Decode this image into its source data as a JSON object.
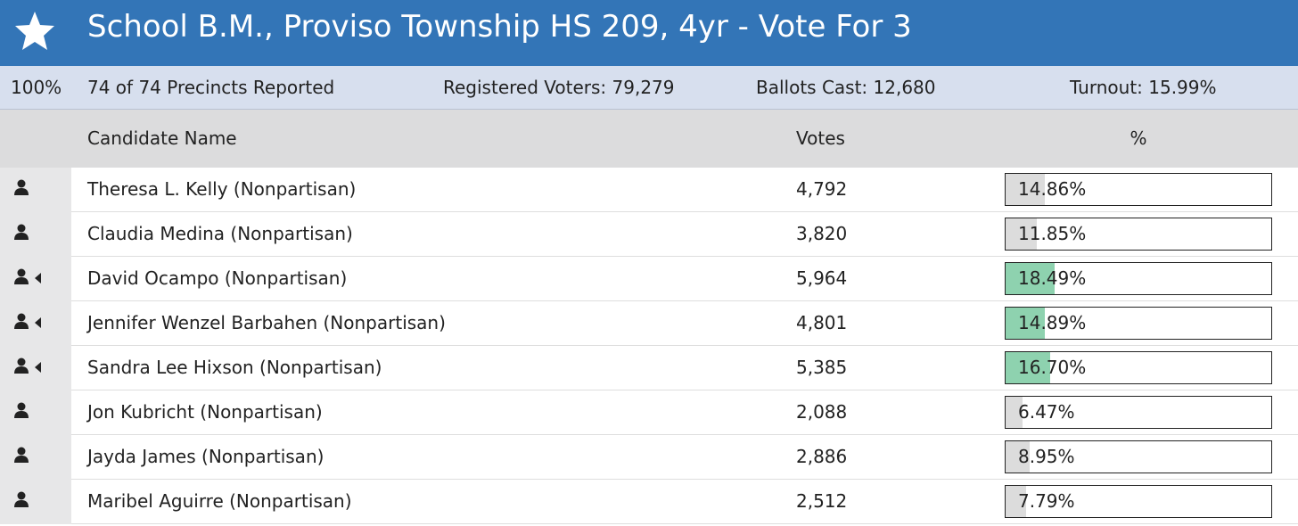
{
  "header": {
    "title": "School B.M., Proviso Township HS 209, 4yr - Vote For 3"
  },
  "summary": {
    "reported_pct": "100%",
    "precincts": "74 of 74 Precincts Reported",
    "registered": "Registered Voters: 79,279",
    "ballots": "Ballots Cast: 12,680",
    "turnout": "Turnout: 15.99%"
  },
  "columns": {
    "name": "Candidate Name",
    "votes": "Votes",
    "percent": "%"
  },
  "bar_scale": 100,
  "rows": [
    {
      "name": "Theresa L. Kelly (Nonpartisan)",
      "votes": "4,792",
      "percent": {
        "value": 14.86,
        "label": "14.86%"
      },
      "elected": false
    },
    {
      "name": "Claudia Medina (Nonpartisan)",
      "votes": "3,820",
      "percent": {
        "value": 11.85,
        "label": "11.85%"
      },
      "elected": false
    },
    {
      "name": "David Ocampo (Nonpartisan)",
      "votes": "5,964",
      "percent": {
        "value": 18.49,
        "label": "18.49%"
      },
      "elected": true
    },
    {
      "name": "Jennifer Wenzel Barbahen (Nonpartisan)",
      "votes": "4,801",
      "percent": {
        "value": 14.89,
        "label": "14.89%"
      },
      "elected": true
    },
    {
      "name": "Sandra Lee Hixson (Nonpartisan)",
      "votes": "5,385",
      "percent": {
        "value": 16.7,
        "label": "16.70%"
      },
      "elected": true
    },
    {
      "name": "Jon Kubricht (Nonpartisan)",
      "votes": "2,088",
      "percent": {
        "value": 6.47,
        "label": "6.47%"
      },
      "elected": false
    },
    {
      "name": "Jayda James (Nonpartisan)",
      "votes": "2,886",
      "percent": {
        "value": 8.95,
        "label": "8.95%"
      },
      "elected": false
    },
    {
      "name": "Maribel Aguirre (Nonpartisan)",
      "votes": "2,512",
      "percent": {
        "value": 7.79,
        "label": "7.79%"
      },
      "elected": false
    }
  ]
}
